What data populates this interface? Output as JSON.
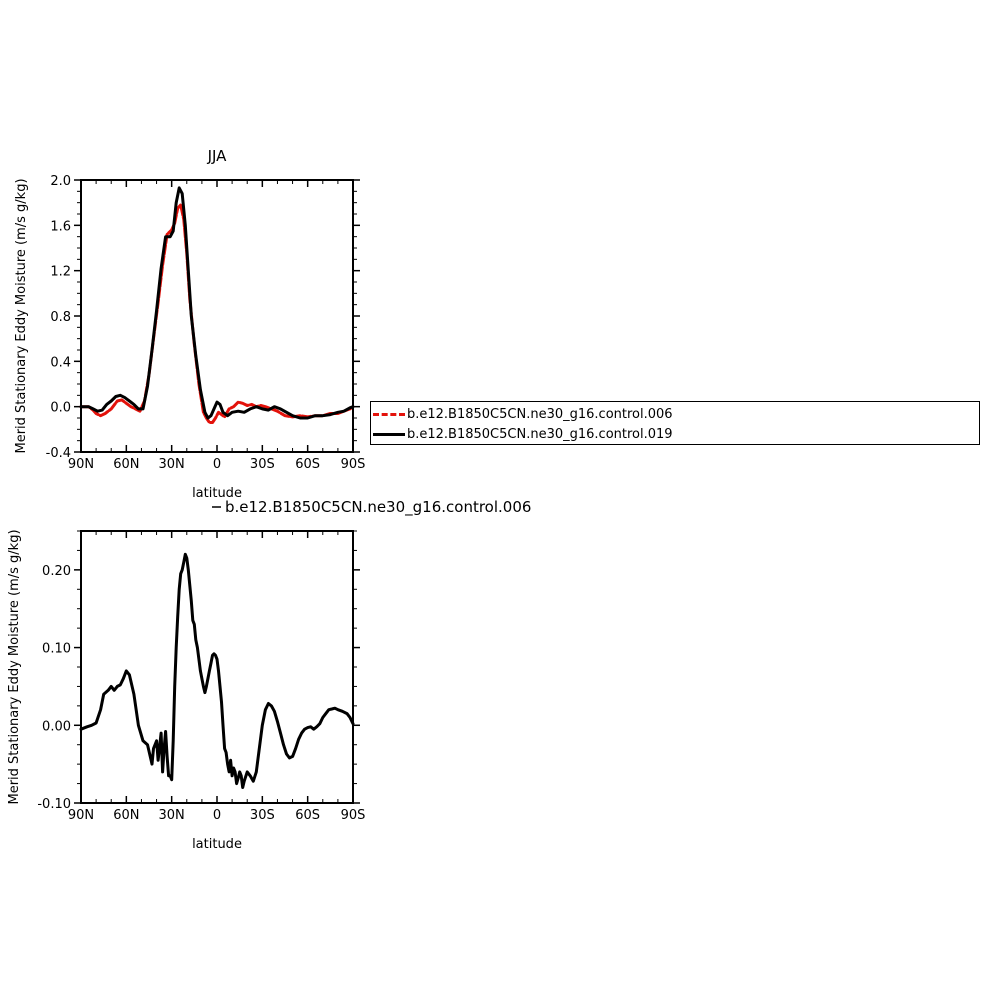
{
  "chart_data": [
    {
      "type": "line",
      "title": "JJA",
      "xlabel": "latitude",
      "ylabel": "Merid Stationary Eddy Moisture (m/s g/kg)",
      "xlim": [
        90,
        -90
      ],
      "ylim": [
        -0.4,
        2.0
      ],
      "x_ticks": [
        90,
        60,
        30,
        0,
        -30,
        -60,
        -90
      ],
      "x_tick_labels": [
        "90N",
        "60N",
        "30N",
        "0",
        "30S",
        "60S",
        "90S"
      ],
      "y_ticks": [
        -0.4,
        0.0,
        0.4,
        0.8,
        1.2,
        1.6,
        2.0
      ],
      "y_tick_labels": [
        "-0.4",
        "0.0",
        "0.4",
        "0.8",
        "1.2",
        "1.6",
        "2.0"
      ],
      "legend": "right",
      "series": [
        {
          "name": "b.e12.B1850C5CN.ne30_g16.control.006",
          "color": "#e3120b",
          "dash": true,
          "x": [
            90,
            85,
            82,
            80,
            77,
            74,
            70,
            66,
            63,
            60,
            57,
            54,
            51,
            48,
            45,
            42,
            39,
            36,
            33,
            30,
            28,
            26,
            24,
            22,
            20,
            18,
            15,
            12,
            9,
            7,
            5,
            3,
            1,
            -1,
            -3,
            -5,
            -8,
            -11,
            -14,
            -17,
            -20,
            -23,
            -26,
            -29,
            -32,
            -36,
            -40,
            -45,
            -50,
            -55,
            -60,
            -65,
            -70,
            -75,
            -80,
            -84,
            -88,
            -90
          ],
          "y": [
            0.0,
            0.0,
            -0.03,
            -0.06,
            -0.08,
            -0.06,
            -0.02,
            0.05,
            0.06,
            0.03,
            0.0,
            -0.02,
            -0.04,
            0.05,
            0.28,
            0.6,
            0.92,
            1.25,
            1.52,
            1.56,
            1.62,
            1.75,
            1.78,
            1.65,
            1.35,
            0.95,
            0.55,
            0.2,
            -0.05,
            -0.1,
            -0.14,
            -0.14,
            -0.1,
            -0.05,
            -0.07,
            -0.09,
            -0.02,
            0.0,
            0.04,
            0.03,
            0.01,
            0.02,
            0.0,
            0.01,
            0.0,
            -0.02,
            -0.04,
            -0.08,
            -0.09,
            -0.08,
            -0.09,
            -0.08,
            -0.08,
            -0.06,
            -0.06,
            -0.04,
            -0.02,
            0.0
          ]
        },
        {
          "name": "b.e12.B1850C5CN.ne30_g16.control.019",
          "color": "#000000",
          "dash": false,
          "x": [
            90,
            85,
            82,
            79,
            76,
            73,
            70,
            67,
            64,
            61,
            58,
            55,
            52,
            49,
            46,
            43,
            40,
            37,
            34,
            31,
            29,
            27,
            25,
            23,
            21,
            19,
            17,
            14,
            11,
            8,
            6,
            4,
            2,
            0,
            -2,
            -4,
            -7,
            -10,
            -14,
            -18,
            -22,
            -26,
            -30,
            -34,
            -38,
            -42,
            -46,
            -50,
            -55,
            -60,
            -65,
            -70,
            -75,
            -80,
            -84,
            -88,
            -90
          ],
          "y": [
            0.0,
            0.0,
            -0.02,
            -0.04,
            -0.03,
            0.02,
            0.05,
            0.09,
            0.1,
            0.08,
            0.05,
            0.02,
            -0.02,
            -0.02,
            0.18,
            0.5,
            0.85,
            1.22,
            1.5,
            1.5,
            1.55,
            1.8,
            1.93,
            1.88,
            1.6,
            1.2,
            0.8,
            0.45,
            0.15,
            -0.05,
            -0.1,
            -0.08,
            -0.02,
            0.04,
            0.02,
            -0.05,
            -0.08,
            -0.05,
            -0.04,
            -0.05,
            -0.02,
            0.0,
            -0.02,
            -0.03,
            0.0,
            -0.02,
            -0.05,
            -0.08,
            -0.1,
            -0.1,
            -0.08,
            -0.08,
            -0.07,
            -0.05,
            -0.04,
            -0.01,
            0.0
          ]
        }
      ]
    },
    {
      "type": "line",
      "title": "b.e12.B1850C5CN.ne30_g16.control.006",
      "xlabel": "latitude",
      "ylabel": "Merid Stationary Eddy Moisture (m/s g/kg)",
      "xlim": [
        90,
        -90
      ],
      "ylim": [
        -0.1,
        0.25
      ],
      "x_ticks": [
        90,
        60,
        30,
        0,
        -30,
        -60,
        -90
      ],
      "x_tick_labels": [
        "90N",
        "60N",
        "30N",
        "0",
        "30S",
        "60S",
        "90S"
      ],
      "y_ticks": [
        -0.1,
        0.0,
        0.1,
        0.2
      ],
      "y_tick_labels": [
        "-0.10",
        "0.00",
        "0.10",
        "0.20"
      ],
      "series": [
        {
          "color": "#000000",
          "dash": false,
          "x": [
            90,
            86,
            83,
            80,
            77,
            75,
            72,
            70,
            68,
            66,
            64,
            62,
            60,
            58,
            55,
            52,
            49,
            46,
            43,
            42,
            40,
            39,
            37,
            36,
            35,
            34,
            33,
            32,
            31,
            30,
            29,
            28,
            27,
            26,
            25,
            24,
            23,
            22,
            21,
            20,
            19,
            18,
            17,
            16,
            15,
            14,
            13,
            12,
            11,
            10,
            9,
            8,
            7,
            6,
            5,
            4,
            3,
            2,
            1,
            0,
            -1,
            -2,
            -3,
            -4,
            -5,
            -6,
            -7,
            -8,
            -9,
            -10,
            -11,
            -12,
            -13,
            -14,
            -15,
            -16,
            -17,
            -18,
            -20,
            -22,
            -24,
            -26,
            -28,
            -30,
            -32,
            -34,
            -36,
            -38,
            -40,
            -42,
            -44,
            -46,
            -48,
            -50,
            -52,
            -54,
            -56,
            -58,
            -60,
            -62,
            -64,
            -66,
            -68,
            -70,
            -72,
            -74,
            -76,
            -78,
            -80,
            -83,
            -86,
            -88,
            -90
          ],
          "y": [
            -0.005,
            -0.002,
            0.0,
            0.003,
            0.02,
            0.04,
            0.045,
            0.05,
            0.045,
            0.05,
            0.052,
            0.06,
            0.07,
            0.065,
            0.04,
            0.0,
            -0.02,
            -0.025,
            -0.05,
            -0.03,
            -0.02,
            -0.045,
            -0.01,
            -0.06,
            -0.03,
            -0.008,
            -0.04,
            -0.065,
            -0.065,
            -0.07,
            -0.02,
            0.05,
            0.1,
            0.14,
            0.175,
            0.195,
            0.2,
            0.21,
            0.22,
            0.215,
            0.2,
            0.18,
            0.16,
            0.135,
            0.13,
            0.11,
            0.1,
            0.085,
            0.07,
            0.06,
            0.05,
            0.042,
            0.05,
            0.06,
            0.07,
            0.08,
            0.09,
            0.092,
            0.09,
            0.085,
            0.07,
            0.05,
            0.03,
            0.0,
            -0.03,
            -0.035,
            -0.05,
            -0.06,
            -0.045,
            -0.065,
            -0.055,
            -0.06,
            -0.075,
            -0.068,
            -0.06,
            -0.065,
            -0.08,
            -0.072,
            -0.06,
            -0.065,
            -0.072,
            -0.06,
            -0.03,
            0.0,
            0.02,
            0.028,
            0.025,
            0.018,
            0.005,
            -0.01,
            -0.025,
            -0.037,
            -0.042,
            -0.04,
            -0.03,
            -0.018,
            -0.01,
            -0.005,
            -0.003,
            -0.002,
            -0.005,
            -0.002,
            0.002,
            0.01,
            0.015,
            0.02,
            0.021,
            0.022,
            0.02,
            0.018,
            0.015,
            0.01,
            0.002
          ]
        }
      ]
    }
  ]
}
